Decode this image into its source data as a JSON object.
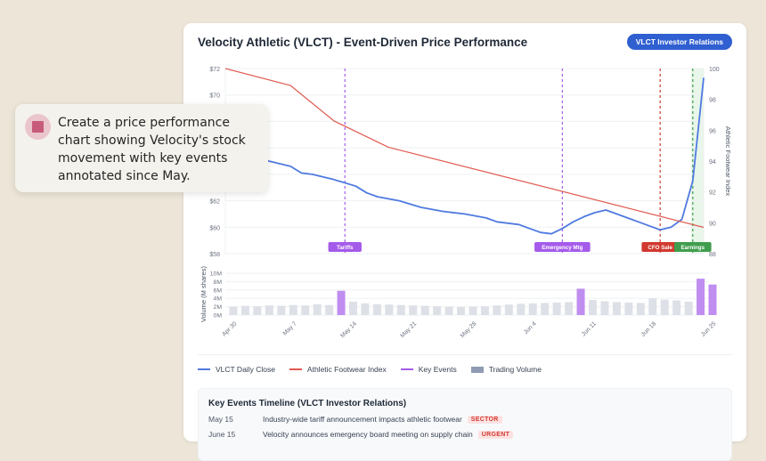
{
  "header": {
    "title": "Velocity Athletic (VLCT) - Event-Driven Price Performance",
    "ir_button": "VLCT Investor Relations"
  },
  "tooltip": {
    "icon": "stop-square-icon",
    "text": "Create a price performance chart showing Velocity's stock movement with key events annotated since May."
  },
  "legend": [
    {
      "label": "VLCT Daily Close",
      "color": "#4f7ae0",
      "kind": "line"
    },
    {
      "label": "Athletic Footwear Index",
      "color": "#e05a4f",
      "kind": "line"
    },
    {
      "label": "Key Events",
      "color": "#a55bea",
      "kind": "line"
    },
    {
      "label": "Trading Volume",
      "color": "#8f9bb3",
      "kind": "box"
    }
  ],
  "timeline": {
    "title": "Key Events Timeline (VLCT Investor Relations)",
    "rows": [
      {
        "date": "May 15",
        "text": "Industry-wide tariff announcement impacts athletic footwear",
        "tag": "SECTOR"
      },
      {
        "date": "June 15",
        "text": "Velocity announces emergency board meeting on supply chain",
        "tag": "URGENT"
      }
    ]
  },
  "chart_data": [
    {
      "type": "line",
      "title": "Velocity Athletic (VLCT) - Event-Driven Price Performance",
      "xlabel": "",
      "ylabel": "",
      "y2label": "Athletic Footwear Index",
      "ylim": [
        58,
        72
      ],
      "y2lim": [
        88,
        100
      ],
      "yticks": [
        "$58",
        "$60",
        "$62",
        "$64",
        "$66",
        "$68",
        "$70",
        "$72"
      ],
      "y2ticks": [
        "88",
        "90",
        "92",
        "94",
        "96",
        "98",
        "100"
      ],
      "grid": true,
      "series": [
        {
          "name": "VLCT Daily Close",
          "axis": "left",
          "color": "#4f7ae0",
          "points": [
            [
              0,
              65.8
            ],
            [
              2,
              65.4
            ],
            [
              4,
              65.0
            ],
            [
              6,
              64.6
            ],
            [
              7,
              64.1
            ],
            [
              8,
              64.0
            ],
            [
              10,
              63.6
            ],
            [
              12,
              63.1
            ],
            [
              13,
              62.6
            ],
            [
              14,
              62.3
            ],
            [
              16,
              62.0
            ],
            [
              18,
              61.5
            ],
            [
              20,
              61.2
            ],
            [
              22,
              61.0
            ],
            [
              24,
              60.7
            ],
            [
              25,
              60.4
            ],
            [
              27,
              60.2
            ],
            [
              28,
              59.9
            ],
            [
              29,
              59.6
            ],
            [
              30,
              59.5
            ],
            [
              31,
              59.9
            ],
            [
              32,
              60.4
            ],
            [
              33,
              60.8
            ],
            [
              34,
              61.1
            ],
            [
              35,
              61.3
            ],
            [
              36,
              61.0
            ],
            [
              37,
              60.7
            ],
            [
              38,
              60.4
            ],
            [
              39,
              60.1
            ],
            [
              40,
              59.8
            ],
            [
              41,
              60.0
            ],
            [
              42,
              60.6
            ],
            [
              43,
              63.5
            ],
            [
              44,
              71.3
            ]
          ],
          "note": "x = trading-day index from Apr 30 (right-edge sharp spike after Earnings)"
        },
        {
          "name": "Athletic Footwear Index",
          "axis": "right",
          "color": "#e05a4f",
          "points": [
            [
              0,
              100
            ],
            [
              6,
              98.9
            ],
            [
              10,
              96.6
            ],
            [
              15,
              94.9
            ],
            [
              44,
              89.7
            ]
          ]
        }
      ],
      "annotations": [
        {
          "label": "Tariffs",
          "x_index": 11,
          "color": "#a55bea"
        },
        {
          "label": "Emergency Mtg",
          "x_index": 31,
          "color": "#a55bea"
        },
        {
          "label": "CFO Sale",
          "x_index": 40,
          "color": "#d1392e"
        },
        {
          "label": "Earnings",
          "x_index": 43,
          "color": "#3f9e4d",
          "shaded_region": true
        }
      ]
    },
    {
      "type": "bar",
      "title": "Trading Volume",
      "ylabel": "Volume (M shares)",
      "ylim": [
        0,
        10
      ],
      "yticks": [
        "0M",
        "2M",
        "4M",
        "6M",
        "8M",
        "10M"
      ],
      "categories_labels": [
        "Apr 30",
        "May 7",
        "May 14",
        "May 21",
        "May 28",
        "Jun 4",
        "Jun 11",
        "Jun 18",
        "Jun 25"
      ],
      "values": [
        2.0,
        2.2,
        2.1,
        2.3,
        2.2,
        2.4,
        2.3,
        2.6,
        2.4,
        5.8,
        3.2,
        2.8,
        2.6,
        2.5,
        2.4,
        2.3,
        2.2,
        2.1,
        2.0,
        1.9,
        2.0,
        2.1,
        2.3,
        2.5,
        2.7,
        2.8,
        2.9,
        3.0,
        3.1,
        6.3,
        3.6,
        3.3,
        3.1,
        3.0,
        2.9,
        4.0,
        3.7,
        3.5,
        3.2,
        8.7,
        7.3
      ],
      "highlight_indices": [
        9,
        29,
        39,
        40
      ],
      "highlight_color": "#c08df0",
      "base_color": "#dde1e7"
    }
  ]
}
